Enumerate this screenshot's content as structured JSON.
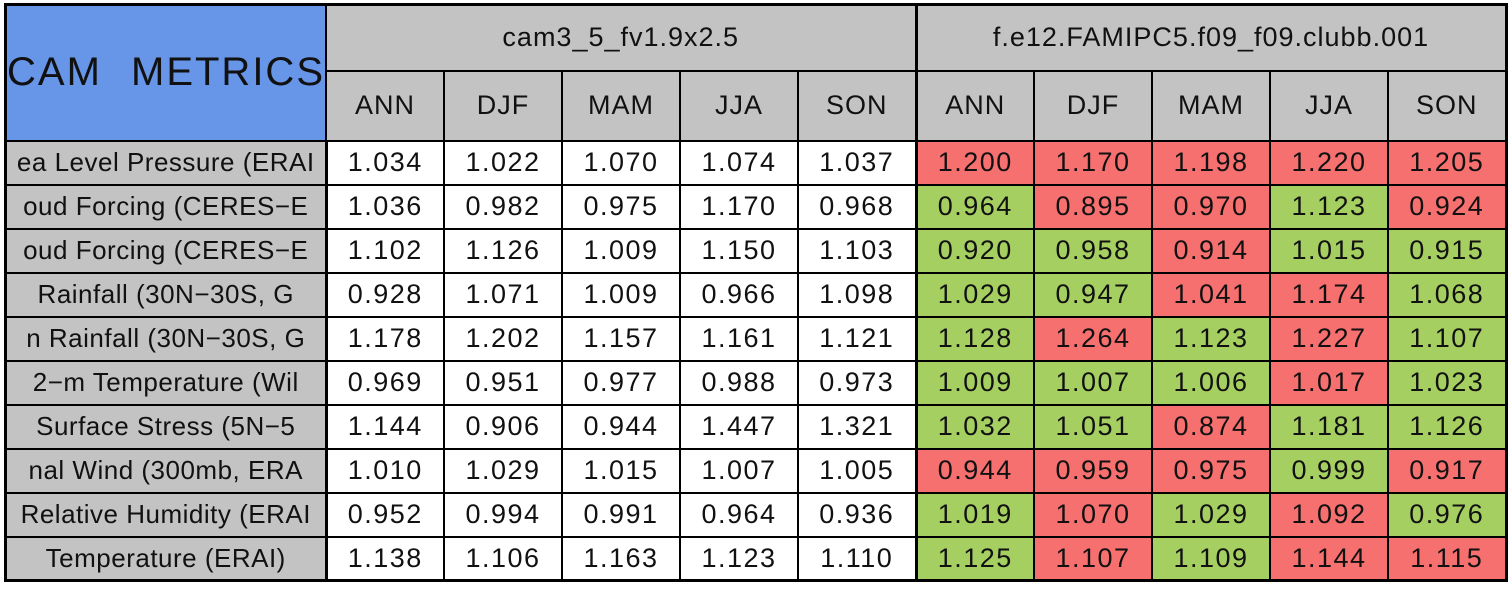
{
  "chart_data": {
    "type": "table",
    "title": "CAM METRICS",
    "column_groups": [
      {
        "label": "cam3_5_fv1.9x2.5"
      },
      {
        "label": "f.e12.FAMIPC5.f09_f09.clubb.001"
      }
    ],
    "season_columns": [
      "ANN",
      "DJF",
      "MAM",
      "JJA",
      "SON"
    ],
    "rows": [
      {
        "label": "ea Level Pressure (ERAI",
        "control_values": [
          "1.034",
          "1.022",
          "1.070",
          "1.074",
          "1.037"
        ],
        "test_values": [
          "1.200",
          "1.170",
          "1.198",
          "1.220",
          "1.205"
        ],
        "test_colors": [
          "red",
          "red",
          "red",
          "red",
          "red"
        ]
      },
      {
        "label": "oud Forcing (CERES−E",
        "control_values": [
          "1.036",
          "0.982",
          "0.975",
          "1.170",
          "0.968"
        ],
        "test_values": [
          "0.964",
          "0.895",
          "0.970",
          "1.123",
          "0.924"
        ],
        "test_colors": [
          "green",
          "red",
          "red",
          "green",
          "red"
        ]
      },
      {
        "label": "oud Forcing (CERES−E",
        "control_values": [
          "1.102",
          "1.126",
          "1.009",
          "1.150",
          "1.103"
        ],
        "test_values": [
          "0.920",
          "0.958",
          "0.914",
          "1.015",
          "0.915"
        ],
        "test_colors": [
          "green",
          "green",
          "red",
          "green",
          "green"
        ]
      },
      {
        "label": "Rainfall (30N−30S, G",
        "control_values": [
          "0.928",
          "1.071",
          "1.009",
          "0.966",
          "1.098"
        ],
        "test_values": [
          "1.029",
          "0.947",
          "1.041",
          "1.174",
          "1.068"
        ],
        "test_colors": [
          "green",
          "green",
          "red",
          "red",
          "green"
        ]
      },
      {
        "label": "n Rainfall (30N−30S, G",
        "control_values": [
          "1.178",
          "1.202",
          "1.157",
          "1.161",
          "1.121"
        ],
        "test_values": [
          "1.128",
          "1.264",
          "1.123",
          "1.227",
          "1.107"
        ],
        "test_colors": [
          "green",
          "red",
          "green",
          "red",
          "green"
        ]
      },
      {
        "label": "2−m Temperature (Wil",
        "control_values": [
          "0.969",
          "0.951",
          "0.977",
          "0.988",
          "0.973"
        ],
        "test_values": [
          "1.009",
          "1.007",
          "1.006",
          "1.017",
          "1.023"
        ],
        "test_colors": [
          "green",
          "green",
          "green",
          "red",
          "green"
        ]
      },
      {
        "label": "Surface Stress (5N−5",
        "control_values": [
          "1.144",
          "0.906",
          "0.944",
          "1.447",
          "1.321"
        ],
        "test_values": [
          "1.032",
          "1.051",
          "0.874",
          "1.181",
          "1.126"
        ],
        "test_colors": [
          "green",
          "green",
          "red",
          "green",
          "green"
        ]
      },
      {
        "label": "nal Wind (300mb, ERA",
        "control_values": [
          "1.010",
          "1.029",
          "1.015",
          "1.007",
          "1.005"
        ],
        "test_values": [
          "0.944",
          "0.959",
          "0.975",
          "0.999",
          "0.917"
        ],
        "test_colors": [
          "red",
          "red",
          "red",
          "green",
          "red"
        ]
      },
      {
        "label": "Relative Humidity (ERAI",
        "control_values": [
          "0.952",
          "0.994",
          "0.991",
          "0.964",
          "0.936"
        ],
        "test_values": [
          "1.019",
          "1.070",
          "1.029",
          "1.092",
          "0.976"
        ],
        "test_colors": [
          "green",
          "red",
          "green",
          "red",
          "green"
        ]
      },
      {
        "label": "Temperature (ERAI)",
        "control_values": [
          "1.138",
          "1.106",
          "1.163",
          "1.123",
          "1.110"
        ],
        "test_values": [
          "1.125",
          "1.107",
          "1.109",
          "1.144",
          "1.115"
        ],
        "test_colors": [
          "green",
          "red",
          "green",
          "red",
          "red"
        ]
      }
    ]
  },
  "colors": {
    "header_blue": "#6795e8",
    "header_gray": "#c3c3c3",
    "row_label_gray": "#c3c3c3",
    "control_bg": "#ffffff",
    "red": "#f5706e",
    "green": "#a6cf62",
    "border": "#000000"
  }
}
